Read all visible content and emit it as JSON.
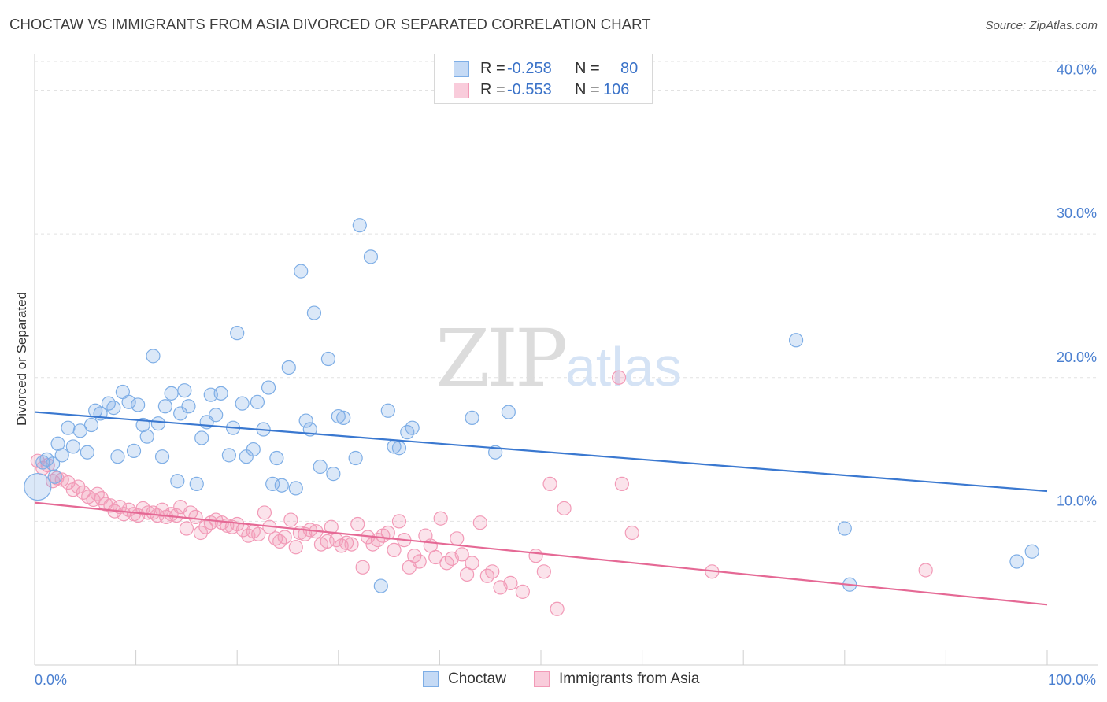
{
  "header": {
    "title": "CHOCTAW VS IMMIGRANTS FROM ASIA DIVORCED OR SEPARATED CORRELATION CHART",
    "source": "Source: ZipAtlas.com"
  },
  "watermark": {
    "zip": "ZIP",
    "atlas": "atlas"
  },
  "legend": {
    "rows": [
      {
        "r_label": "R =",
        "r_value": "-0.258",
        "n_label": "N =",
        "n_value": "80",
        "color": "#7eaee6"
      },
      {
        "r_label": "R =",
        "r_value": "-0.553",
        "n_label": "N =",
        "n_value": "106",
        "color": "#f29ab7"
      }
    ]
  },
  "bottom_legend": {
    "series1": "Choctaw",
    "series2": "Immigrants from Asia"
  },
  "chart_data": {
    "type": "scatter",
    "title": "CHOCTAW VS IMMIGRANTS FROM ASIA DIVORCED OR SEPARATED CORRELATION CHART",
    "xlabel": "",
    "ylabel": "Divorced or Separated",
    "xlim": [
      0,
      100
    ],
    "ylim": [
      0,
      42
    ],
    "x_tick_labels": [
      "0.0%",
      "100.0%"
    ],
    "y_ticks": [
      10,
      20,
      30,
      40
    ],
    "y_tick_labels": [
      "10.0%",
      "20.0%",
      "30.0%",
      "40.0%"
    ],
    "grid": true,
    "legend_position": "top-center",
    "colors": {
      "Choctaw": "#7eaee6",
      "Immigrants from Asia": "#f29ab7",
      "choctaw_line": "#3a78d0",
      "asia_line": "#e56995"
    },
    "series": [
      {
        "name": "Choctaw",
        "trend": [
          [
            0,
            17.6
          ],
          [
            100,
            12.1
          ]
        ],
        "points": [
          [
            0.3,
            12.4
          ],
          [
            0.8,
            14.1
          ],
          [
            1.2,
            14.3
          ],
          [
            1.8,
            14.0
          ],
          [
            2.0,
            13.1
          ],
          [
            2.3,
            15.4
          ],
          [
            2.7,
            14.6
          ],
          [
            3.3,
            16.5
          ],
          [
            3.8,
            15.2
          ],
          [
            4.5,
            16.3
          ],
          [
            5.2,
            14.8
          ],
          [
            5.6,
            16.7
          ],
          [
            6.0,
            17.7
          ],
          [
            6.5,
            17.5
          ],
          [
            7.3,
            18.2
          ],
          [
            7.8,
            17.9
          ],
          [
            8.2,
            14.5
          ],
          [
            8.7,
            19.0
          ],
          [
            9.3,
            18.3
          ],
          [
            9.8,
            14.9
          ],
          [
            10.2,
            18.1
          ],
          [
            10.7,
            16.7
          ],
          [
            11.1,
            15.9
          ],
          [
            11.7,
            21.5
          ],
          [
            12.2,
            16.8
          ],
          [
            12.6,
            14.5
          ],
          [
            12.9,
            18.0
          ],
          [
            13.5,
            18.9
          ],
          [
            14.1,
            12.8
          ],
          [
            14.4,
            17.5
          ],
          [
            14.8,
            19.1
          ],
          [
            15.2,
            18.0
          ],
          [
            16.0,
            12.6
          ],
          [
            16.5,
            15.8
          ],
          [
            17.0,
            16.9
          ],
          [
            17.4,
            18.8
          ],
          [
            17.9,
            17.4
          ],
          [
            18.4,
            18.9
          ],
          [
            19.2,
            14.6
          ],
          [
            19.6,
            16.5
          ],
          [
            20.0,
            23.1
          ],
          [
            20.5,
            18.2
          ],
          [
            20.9,
            14.5
          ],
          [
            21.6,
            15.0
          ],
          [
            22.0,
            18.3
          ],
          [
            22.6,
            16.4
          ],
          [
            23.1,
            19.3
          ],
          [
            23.5,
            12.6
          ],
          [
            23.9,
            14.4
          ],
          [
            24.4,
            12.5
          ],
          [
            25.1,
            20.7
          ],
          [
            25.8,
            12.3
          ],
          [
            26.3,
            27.4
          ],
          [
            26.8,
            17.0
          ],
          [
            27.2,
            16.4
          ],
          [
            27.6,
            24.5
          ],
          [
            28.2,
            13.8
          ],
          [
            29.0,
            21.3
          ],
          [
            29.5,
            13.3
          ],
          [
            30.0,
            17.3
          ],
          [
            30.5,
            17.2
          ],
          [
            31.7,
            14.4
          ],
          [
            32.1,
            30.6
          ],
          [
            33.2,
            28.4
          ],
          [
            34.2,
            5.5
          ],
          [
            34.9,
            17.7
          ],
          [
            35.5,
            15.2
          ],
          [
            36.0,
            15.1
          ],
          [
            36.8,
            16.2
          ],
          [
            37.3,
            16.5
          ],
          [
            43.2,
            17.2
          ],
          [
            45.5,
            14.8
          ],
          [
            46.8,
            17.6
          ],
          [
            75.2,
            22.6
          ],
          [
            80.0,
            9.5
          ],
          [
            80.5,
            5.6
          ],
          [
            97.0,
            7.2
          ],
          [
            98.5,
            7.9
          ]
        ]
      },
      {
        "name": "Immigrants from Asia",
        "trend": [
          [
            0,
            11.3
          ],
          [
            100,
            4.2
          ]
        ],
        "points": [
          [
            0.3,
            14.2
          ],
          [
            0.8,
            13.7
          ],
          [
            1.3,
            13.9
          ],
          [
            1.8,
            12.8
          ],
          [
            2.2,
            13.0
          ],
          [
            2.7,
            12.9
          ],
          [
            3.3,
            12.7
          ],
          [
            3.8,
            12.2
          ],
          [
            4.3,
            12.4
          ],
          [
            4.8,
            12.0
          ],
          [
            5.3,
            11.7
          ],
          [
            5.8,
            11.5
          ],
          [
            6.2,
            11.9
          ],
          [
            6.6,
            11.6
          ],
          [
            7.0,
            11.2
          ],
          [
            7.5,
            11.1
          ],
          [
            7.9,
            10.7
          ],
          [
            8.4,
            11.0
          ],
          [
            8.8,
            10.5
          ],
          [
            9.3,
            10.8
          ],
          [
            9.8,
            10.5
          ],
          [
            10.2,
            10.4
          ],
          [
            10.7,
            10.9
          ],
          [
            11.2,
            10.6
          ],
          [
            11.7,
            10.6
          ],
          [
            12.1,
            10.4
          ],
          [
            12.6,
            10.8
          ],
          [
            13.0,
            10.3
          ],
          [
            13.5,
            10.5
          ],
          [
            14.0,
            10.4
          ],
          [
            14.4,
            11.0
          ],
          [
            15.0,
            9.5
          ],
          [
            15.4,
            10.6
          ],
          [
            15.9,
            10.3
          ],
          [
            16.4,
            9.2
          ],
          [
            16.9,
            9.6
          ],
          [
            17.4,
            9.9
          ],
          [
            17.9,
            10.1
          ],
          [
            18.5,
            9.9
          ],
          [
            19.0,
            9.7
          ],
          [
            19.5,
            9.6
          ],
          [
            20.0,
            9.8
          ],
          [
            20.6,
            9.4
          ],
          [
            21.1,
            9.0
          ],
          [
            21.6,
            9.3
          ],
          [
            22.1,
            9.1
          ],
          [
            22.7,
            10.6
          ],
          [
            23.2,
            9.6
          ],
          [
            23.8,
            8.8
          ],
          [
            24.2,
            8.6
          ],
          [
            24.7,
            8.9
          ],
          [
            25.3,
            10.1
          ],
          [
            25.8,
            8.2
          ],
          [
            26.2,
            9.2
          ],
          [
            26.7,
            9.1
          ],
          [
            27.2,
            9.4
          ],
          [
            27.8,
            9.3
          ],
          [
            28.3,
            8.4
          ],
          [
            28.9,
            8.6
          ],
          [
            29.3,
            9.6
          ],
          [
            29.8,
            8.7
          ],
          [
            30.3,
            8.3
          ],
          [
            30.8,
            8.5
          ],
          [
            31.3,
            8.4
          ],
          [
            31.9,
            9.8
          ],
          [
            32.4,
            6.8
          ],
          [
            32.9,
            8.9
          ],
          [
            33.4,
            8.4
          ],
          [
            33.9,
            8.7
          ],
          [
            34.4,
            9.0
          ],
          [
            34.9,
            9.2
          ],
          [
            35.5,
            8.0
          ],
          [
            36.0,
            10.0
          ],
          [
            36.5,
            8.7
          ],
          [
            37.0,
            6.8
          ],
          [
            37.5,
            7.6
          ],
          [
            38.0,
            7.2
          ],
          [
            38.6,
            9.0
          ],
          [
            39.1,
            8.3
          ],
          [
            39.6,
            7.5
          ],
          [
            40.1,
            10.2
          ],
          [
            40.7,
            7.1
          ],
          [
            41.2,
            7.4
          ],
          [
            41.7,
            8.8
          ],
          [
            42.2,
            7.7
          ],
          [
            42.7,
            6.3
          ],
          [
            43.2,
            7.1
          ],
          [
            44.0,
            9.9
          ],
          [
            44.7,
            6.2
          ],
          [
            45.2,
            6.5
          ],
          [
            46.0,
            5.4
          ],
          [
            47.0,
            5.7
          ],
          [
            48.2,
            5.1
          ],
          [
            49.5,
            7.6
          ],
          [
            50.3,
            6.5
          ],
          [
            50.9,
            12.6
          ],
          [
            51.6,
            3.9
          ],
          [
            52.3,
            10.9
          ],
          [
            58.0,
            12.6
          ],
          [
            59.0,
            9.2
          ],
          [
            66.9,
            6.5
          ],
          [
            88.0,
            6.6
          ],
          [
            57.7,
            20.0
          ]
        ]
      }
    ]
  }
}
